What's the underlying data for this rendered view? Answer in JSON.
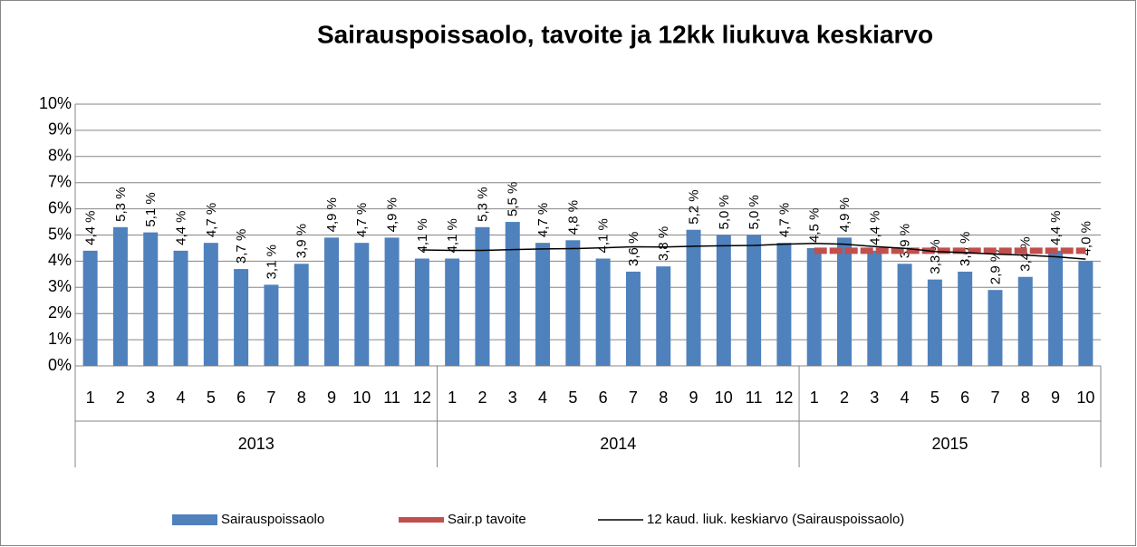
{
  "chart_data": {
    "type": "bar",
    "title": "Sairauspoissaolo, tavoite ja 12kk liukuva keskiarvo",
    "category_groups": [
      {
        "name": "2013",
        "categories": [
          "1",
          "2",
          "3",
          "4",
          "5",
          "6",
          "7",
          "8",
          "9",
          "10",
          "11",
          "12"
        ]
      },
      {
        "name": "2014",
        "categories": [
          "1",
          "2",
          "3",
          "4",
          "5",
          "6",
          "7",
          "8",
          "9",
          "10",
          "11",
          "12"
        ]
      },
      {
        "name": "2015",
        "categories": [
          "1",
          "2",
          "3",
          "4",
          "5",
          "6",
          "7",
          "8",
          "9",
          "10"
        ]
      }
    ],
    "ylim": [
      0,
      10
    ],
    "yticks": [
      {
        "value": 0,
        "label": "0%"
      },
      {
        "value": 1,
        "label": "1%"
      },
      {
        "value": 2,
        "label": "2%"
      },
      {
        "value": 3,
        "label": "3%"
      },
      {
        "value": 4,
        "label": "4%"
      },
      {
        "value": 5,
        "label": "5%"
      },
      {
        "value": 6,
        "label": "6%"
      },
      {
        "value": 7,
        "label": "7%"
      },
      {
        "value": 8,
        "label": "8%"
      },
      {
        "value": 9,
        "label": "9%"
      },
      {
        "value": 10,
        "label": "10%"
      }
    ],
    "grid": true,
    "legend": "bottom",
    "series": [
      {
        "name": "Sairauspoissaolo",
        "type": "bar",
        "color": "#4f81bd",
        "values": [
          4.4,
          5.3,
          5.1,
          4.4,
          4.7,
          3.7,
          3.1,
          3.9,
          4.9,
          4.7,
          4.9,
          4.1,
          4.1,
          5.3,
          5.5,
          4.7,
          4.8,
          4.1,
          3.6,
          3.8,
          5.2,
          5.0,
          5.0,
          4.7,
          4.5,
          4.9,
          4.4,
          3.9,
          3.3,
          3.6,
          2.9,
          3.4,
          4.4,
          4.0
        ],
        "value_labels": [
          "4,4 %",
          "5,3 %",
          "5,1 %",
          "4,4 %",
          "4,7 %",
          "3,7 %",
          "3,1 %",
          "3,9 %",
          "4,9 %",
          "4,7 %",
          "4,9 %",
          "4,1 %",
          "4,1 %",
          "5,3 %",
          "5,5 %",
          "4,7 %",
          "4,8 %",
          "4,1 %",
          "3,6 %",
          "3,8 %",
          "5,2 %",
          "5,0 %",
          "5,0 %",
          "4,7 %",
          "4,5 %",
          "4,9 %",
          "4,4 %",
          "3,9 %",
          "3,3 %",
          "3,6 %",
          "2,9 %",
          "3,4 %",
          "4,4 %",
          "4,0 %"
        ]
      },
      {
        "name": "Sair.p tavoite",
        "type": "line",
        "color": "#c0504d",
        "values": [
          null,
          null,
          null,
          null,
          null,
          null,
          null,
          null,
          null,
          null,
          null,
          null,
          null,
          null,
          null,
          null,
          null,
          null,
          null,
          null,
          null,
          null,
          null,
          null,
          4.4,
          4.4,
          4.4,
          4.4,
          4.4,
          4.4,
          4.4,
          4.4,
          4.4,
          4.4
        ]
      },
      {
        "name": "12 kaud. liuk. keskiarvo (Sairauspoissaolo)",
        "type": "line",
        "color": "#000000",
        "values": [
          null,
          null,
          null,
          null,
          null,
          null,
          null,
          null,
          null,
          null,
          null,
          4.43,
          4.41,
          4.41,
          4.44,
          4.47,
          4.48,
          4.51,
          4.55,
          4.54,
          4.57,
          4.59,
          4.6,
          4.65,
          4.68,
          4.65,
          4.56,
          4.49,
          4.37,
          4.33,
          4.27,
          4.23,
          4.17,
          4.08
        ]
      }
    ]
  }
}
